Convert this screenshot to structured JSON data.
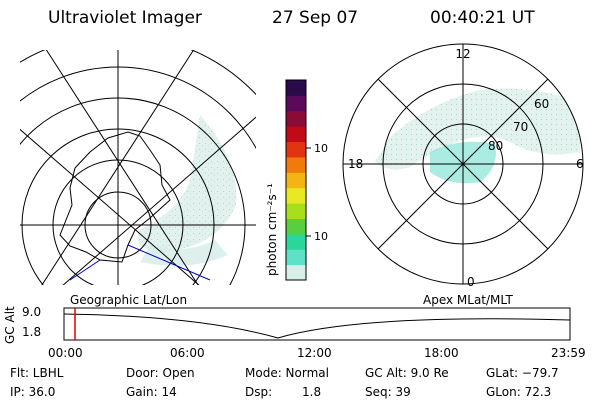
{
  "header": {
    "title": "Ultraviolet Imager",
    "date": "27 Sep 07",
    "time": "00:40:21 UT"
  },
  "colorbar": {
    "unit_label": "photon cm⁻²s⁻¹",
    "ticks": [
      "100",
      "10"
    ],
    "colors": [
      "#d8eee8",
      "#5fe0c8",
      "#2bd69a",
      "#56d040",
      "#a8de1c",
      "#e8e824",
      "#f4b414",
      "#f07a0c",
      "#e23410",
      "#c00a18",
      "#8c0a38",
      "#5a0a5a",
      "#2a0a4a"
    ]
  },
  "polar_plot": {
    "labels": [
      "12",
      "18",
      "6",
      "0"
    ],
    "lat_labels": [
      "60",
      "70",
      "80"
    ]
  },
  "timeline": {
    "left_title": "Geographic Lat/Lon",
    "right_title": "Apex MLat/MLT",
    "y_axis": "GC Alt",
    "y_ticks": [
      "9.0",
      "1.8"
    ],
    "x_ticks": [
      "00:00",
      "06:00",
      "12:00",
      "18:00",
      "23:59"
    ],
    "marker_color": "#e00000"
  },
  "info": {
    "flt": "Flt: LBHL",
    "ip": "IP: 36.0",
    "door": "Door: Open",
    "gain": "Gain: 14",
    "mode": "Mode: Normal",
    "dsp_label": "Dsp:",
    "dsp_value": "1.8",
    "gc_alt": "GC Alt: 9.0 Re",
    "seq": "Seq: 39",
    "glat": "GLat: −79.7",
    "glon": "GLon:  72.3"
  }
}
